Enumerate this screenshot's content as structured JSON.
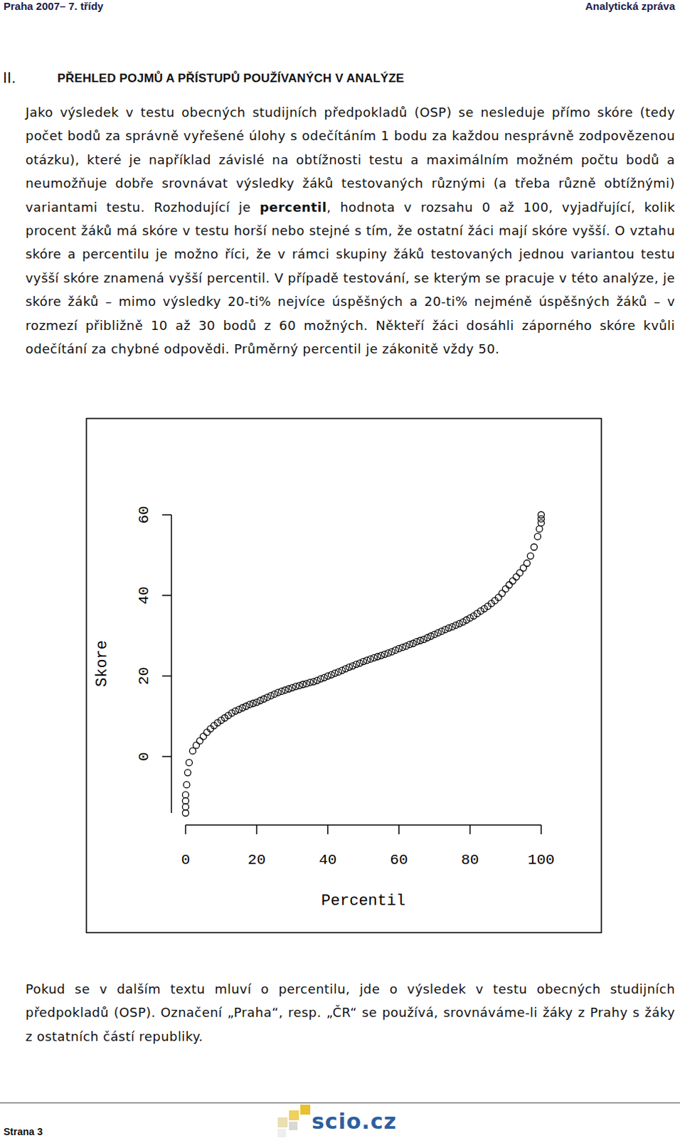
{
  "header": {
    "left": "Praha 2007– 7. třídy",
    "right": "Analytická zpráva"
  },
  "section": {
    "number": "II.",
    "title": "PŘEHLED POJMŮ A PŘÍSTUPŮ POUŽÍVANÝCH V ANALÝZE"
  },
  "paragraph": {
    "before": "Jako výsledek v testu obecných studijních předpokladů (OSP) se nesleduje přímo skóre (tedy počet bodů za správně vyřešené úlohy s odečítáním 1 bodu za každou nesprávně zodpovězenou otázku), které je například závislé na obtížnosti testu a maximálním možném počtu bodů a neumožňuje dobře srovnávat výsledky žáků testovaných různými (a třeba různě obtížnými) variantami testu. Rozhodující je ",
    "bold": "percentil",
    "after": ", hodnota v rozsahu 0 až 100, vyjadřující, kolik procent žáků má skóre v testu horší nebo stejné s tím, že ostatní žáci mají skóre vyšší. O vztahu skóre a percentilu je možno říci, že v rámci skupiny žáků testovaných jednou variantou testu vyšší skóre znamená vyšší percentil. V případě testování, se kterým se pracuje v této analýze, je skóre žáků – mimo výsledky 20-ti% nejvíce úspěšných a 20-ti% nejméně úspěšných žáků – v rozmezí přibližně 10 až 30 bodů z 60 možných. Někteří žáci dosáhli záporného skóre kvůli odečítání za chybné odpovědi. Průměrný percentil je zákonitě vždy 50."
  },
  "chart_data": {
    "type": "scatter",
    "x_label": "Percentil",
    "y_label": "Skore",
    "marker": "circle",
    "color": "#000000",
    "xlim": [
      0,
      100
    ],
    "ylim": [
      -14,
      60
    ],
    "xticks": [
      0,
      20,
      40,
      60,
      80,
      100
    ],
    "yticks": [
      0,
      20,
      40,
      60
    ],
    "x": [
      0,
      0,
      0,
      0,
      0.3,
      0.6,
      1,
      2,
      3,
      4,
      5,
      6,
      7,
      8,
      9,
      10,
      11,
      12,
      13,
      14,
      15,
      16,
      17,
      18,
      19,
      20,
      21,
      22,
      23,
      24,
      25,
      26,
      27,
      28,
      29,
      30,
      31,
      32,
      33,
      34,
      35,
      36,
      37,
      38,
      39,
      40,
      41,
      42,
      43,
      44,
      45,
      46,
      47,
      48,
      49,
      50,
      51,
      52,
      53,
      54,
      55,
      56,
      57,
      58,
      59,
      60,
      61,
      62,
      63,
      64,
      65,
      66,
      67,
      68,
      69,
      70,
      71,
      72,
      73,
      74,
      75,
      76,
      77,
      78,
      79,
      80,
      81,
      82,
      83,
      84,
      85,
      86,
      87,
      88,
      89,
      90,
      91,
      92,
      93,
      94,
      95,
      96,
      97,
      98,
      99,
      99.5,
      100,
      100,
      100
    ],
    "values": [
      -14,
      -12.5,
      -11,
      -9.5,
      -7,
      -4,
      -1.5,
      1.4,
      2.8,
      3.9,
      5,
      6,
      6.9,
      7.7,
      8.4,
      9,
      9.6,
      10.2,
      10.8,
      11.3,
      11.7,
      12.1,
      12.5,
      12.9,
      13.2,
      13.5,
      13.9,
      14.3,
      14.7,
      15.1,
      15.5,
      15.9,
      16.2,
      16.5,
      16.8,
      17.1,
      17.4,
      17.6,
      17.9,
      18.1,
      18.4,
      18.6,
      18.9,
      19.3,
      19.6,
      20,
      20.3,
      20.7,
      21,
      21.4,
      21.8,
      22.2,
      22.5,
      22.9,
      23.2,
      23.6,
      23.9,
      24.2,
      24.5,
      24.8,
      25.1,
      25.4,
      25.7,
      26,
      26.4,
      26.8,
      27.1,
      27.4,
      27.8,
      28.1,
      28.5,
      28.8,
      29.1,
      29.5,
      29.9,
      30.3,
      30.7,
      31.1,
      31.5,
      31.9,
      32.2,
      32.6,
      33,
      33.4,
      33.9,
      34.4,
      34.9,
      35.5,
      36.1,
      36.7,
      37.3,
      38,
      38.7,
      39.5,
      40.5,
      41.6,
      42.6,
      43.6,
      44.6,
      45.6,
      46.8,
      48,
      49.8,
      52,
      54.6,
      56.5,
      58,
      59,
      60
    ]
  },
  "closing_paragraph": "Pokud se v dalším textu mluví o percentilu, jde o výsledek v testu obecných studijních předpokladů (OSP). Označení „Praha“, resp. „ČR“ se používá, srovnáváme-li žáky z Prahy s žáky z ostatních částí republiky.",
  "footer": {
    "page": "Strana 3",
    "logo": "scio.cz"
  }
}
